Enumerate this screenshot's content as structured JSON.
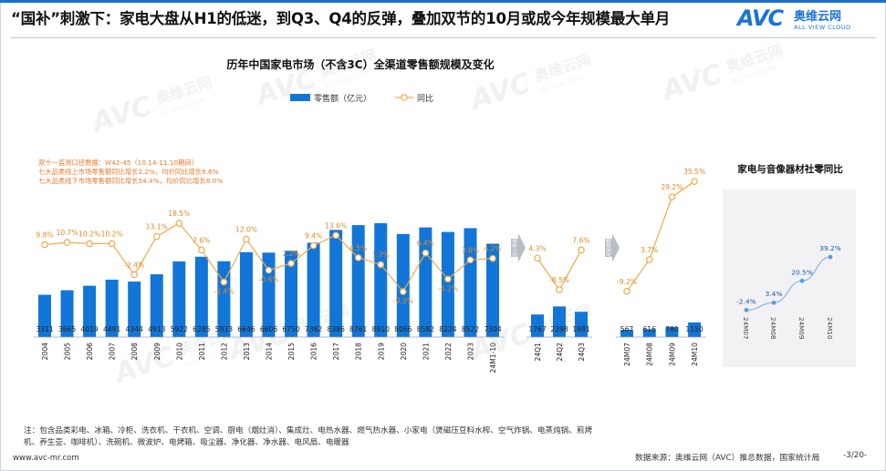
{
  "header": {
    "headline": "“国补”刺激下：家电大盘从H1的低迷，到Q3、Q4的反弹，叠加双节的10月或成今年规模最大单月"
  },
  "logo": {
    "brand": "AVC",
    "cn": "奥维云网",
    "en": "ALL VIEW CLOUD"
  },
  "watermark": {
    "brand": "AVC",
    "cn": "奥维云网",
    "en": "ALL VIEW CLOUD"
  },
  "colors": {
    "bar": "#1176d8",
    "line": "#f0a94a",
    "inset_line": "#5a9ce3",
    "rule": "#1a6fc7"
  },
  "chart_data": [
    {
      "type": "bar",
      "title": "历年中国家电市场（不含3C）全渠道零售额规模及变化",
      "legend_position": "top",
      "series": [
        {
          "name": "零售额（亿元）",
          "kind": "bar"
        },
        {
          "name": "同比",
          "kind": "line"
        }
      ],
      "annotation": [
        "双十一监测口径数据：W42-45（10.14-11.10期间）",
        "七大品类线上市场零售额同比增长2.2%，均价同比增长6.6%",
        "七大品类线下市场零售额同比增长54.4%，均价同比增长8.0%"
      ],
      "separator_labels": [
        "前三季度",
        "月度规模"
      ],
      "panels": [
        {
          "name": "annual",
          "categories": [
            "2004",
            "2005",
            "2006",
            "2007",
            "2008",
            "2009",
            "2010",
            "2011",
            "2012",
            "2013",
            "2014",
            "2015",
            "2016",
            "2017",
            "2018",
            "2019",
            "2020",
            "2021",
            "2022",
            "2023",
            "24M1-10"
          ],
          "values": [
            3311,
            3665,
            4019,
            4491,
            4344,
            4913,
            5922,
            6285,
            5933,
            6646,
            6606,
            6750,
            7382,
            8386,
            8761,
            8910,
            8066,
            8582,
            8224,
            8522,
            7304
          ],
          "yoy": [
            9.8,
            10.7,
            10.2,
            10.2,
            -2.4,
            13.1,
            18.5,
            7.6,
            -5.4,
            12.0,
            -0.6,
            2.2,
            9.4,
            13.6,
            4.5,
            1.7,
            -9.3,
            6.4,
            -4.2,
            3.6,
            4.2
          ],
          "yoy_labels": [
            "9.8%",
            "10.7%",
            "10.2%",
            "10.2%",
            "-2.4%",
            "13.1%",
            "18.5%",
            "7.6%",
            "-5.4%",
            "12.0%",
            "-0.6%",
            "2.2%",
            "9.4%",
            "13.6%",
            "4.5%",
            "1.7%",
            "-9.3%",
            "6.4%",
            "-4.2%",
            "3.6%",
            "4.2%"
          ]
        },
        {
          "name": "quarterly",
          "categories": [
            "24Q1",
            "24Q2",
            "24Q3"
          ],
          "values": [
            1767,
            2398,
            1981
          ],
          "yoy": [
            4.3,
            -8.5,
            7.6
          ],
          "yoy_labels": [
            "4.3%",
            "-8.5%",
            "7.6%"
          ]
        },
        {
          "name": "monthly",
          "categories": [
            "24M07",
            "24M08",
            "24M09",
            "24M10"
          ],
          "values": [
            567,
            616,
            780,
            1150
          ],
          "yoy": [
            -9.2,
            3.7,
            29.2,
            35.5
          ],
          "yoy_labels": [
            "-9.2%",
            "3.7%",
            "29.2%",
            "35.5%"
          ]
        }
      ]
    },
    {
      "type": "line",
      "title": "家电与音像器材社零同比",
      "categories": [
        "24M07",
        "24M08",
        "24M09",
        "24M10"
      ],
      "values": [
        -2.4,
        3.4,
        20.5,
        39.2
      ],
      "value_labels": [
        "-2.4%",
        "3.4%",
        "20.5%",
        "39.2%"
      ]
    }
  ],
  "footer": {
    "note": "注：包含品类彩电、冰箱、冷柜、洗衣机、干衣机、空调、厨电（烟灶消）、集成灶、电热水器、燃气热水器、小家电（煲磁压豆料水榨、空气炸锅、电蒸炖锅、煎烤机、养生壶、咖啡机）、洗碗机、微波炉、电烤箱、吸尘器、净化器、净水器、电风扇、电暖器",
    "website": "www.avc-mr.com",
    "source": "数据来源：奥维云网（AVC）推总数据，国家统计局",
    "page": "-3/20-"
  }
}
